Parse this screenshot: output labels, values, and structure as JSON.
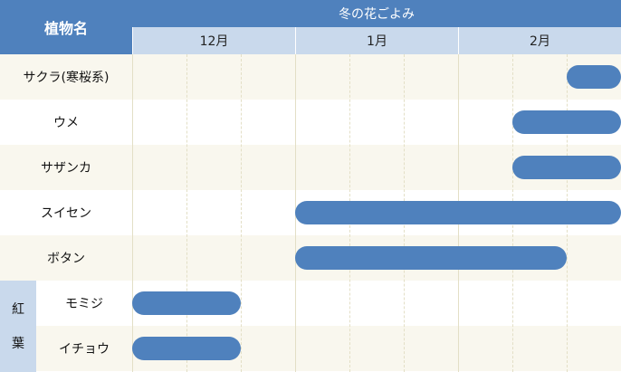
{
  "header": {
    "name_label": "植物名",
    "title": "冬の花ごよみ"
  },
  "group_label": [
    "紅",
    "葉"
  ],
  "chart_data": {
    "type": "gantt",
    "title": "冬の花ごよみ",
    "months": [
      "12月",
      "1月",
      "2月"
    ],
    "period_unit": "third of month (上旬/中旬/下旬)",
    "x_range": [
      0,
      9
    ],
    "rows": [
      {
        "label": "サクラ(寒桜系)",
        "start": 8,
        "end": 9,
        "group": ""
      },
      {
        "label": "ウメ",
        "start": 7,
        "end": 9,
        "group": ""
      },
      {
        "label": "サザンカ",
        "start": 7,
        "end": 9,
        "group": ""
      },
      {
        "label": "スイセン",
        "start": 3,
        "end": 9,
        "group": ""
      },
      {
        "label": "ボタン",
        "start": 3,
        "end": 8,
        "group": ""
      },
      {
        "label": "モミジ",
        "start": 0,
        "end": 2,
        "group": "紅葉"
      },
      {
        "label": "イチョウ",
        "start": 0,
        "end": 2,
        "group": "紅葉"
      }
    ],
    "bar_color": "#4f81bd",
    "header_color": "#4f81bd",
    "subheader_color": "#c9d9ec",
    "stripe_color": "#f9f7ee"
  }
}
